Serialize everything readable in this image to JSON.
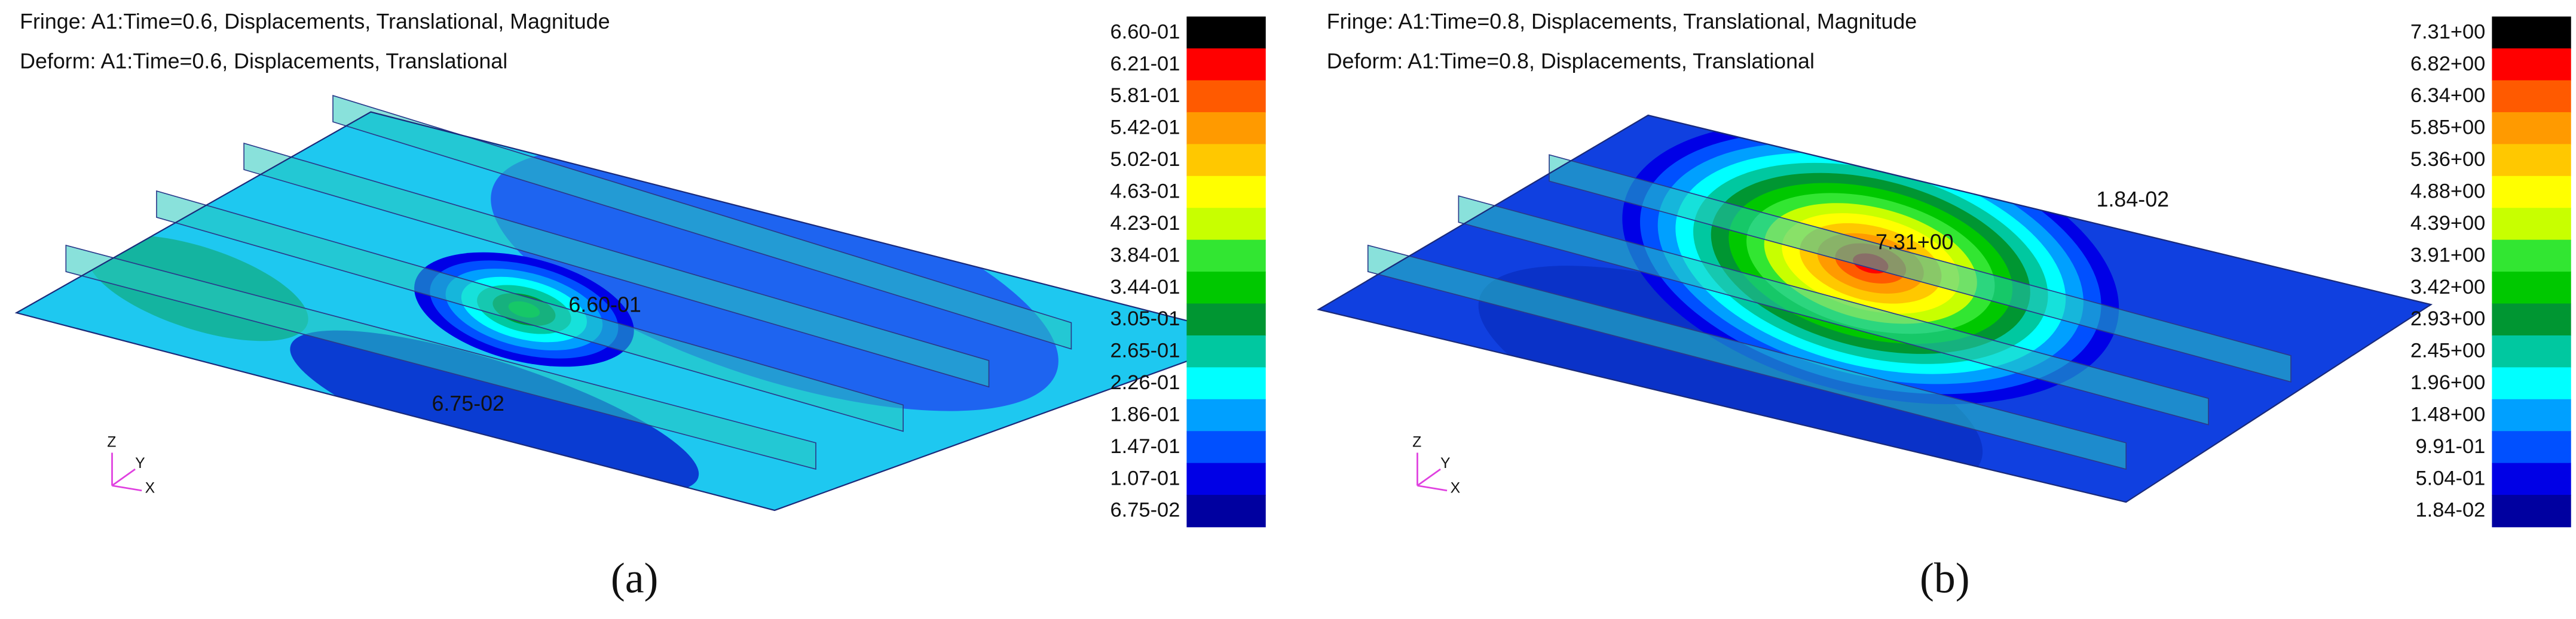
{
  "panels": [
    {
      "fringe": "Fringe: A1:Time=0.6, Displacements, Translational, Magnitude",
      "deform": "Deform: A1:Time=0.6, Displacements, Translational",
      "legend": [
        "6.60-01",
        "6.21-01",
        "5.81-01",
        "5.42-01",
        "5.02-01",
        "4.63-01",
        "4.23-01",
        "3.84-01",
        "3.44-01",
        "3.05-01",
        "2.65-01",
        "2.26-01",
        "1.86-01",
        "1.47-01",
        "1.07-01",
        "6.75-02"
      ],
      "max_label": "6.60-01",
      "min_label": "6.75-02",
      "caption": "(a)"
    },
    {
      "fringe": "Fringe: A1:Time=0.8, Displacements, Translational, Magnitude",
      "deform": "Deform: A1:Time=0.8, Displacements, Translational",
      "legend": [
        "7.31+00",
        "6.82+00",
        "6.34+00",
        "5.85+00",
        "5.36+00",
        "4.88+00",
        "4.39+00",
        "3.91+00",
        "3.42+00",
        "2.93+00",
        "2.45+00",
        "1.96+00",
        "1.48+00",
        "9.91-01",
        "5.04-01",
        "1.84-02"
      ],
      "max_label": "7.31+00",
      "min_label": "1.84-02",
      "caption": "(b)"
    }
  ],
  "triad": {
    "z": "Z",
    "y": "Y",
    "x": "X"
  }
}
